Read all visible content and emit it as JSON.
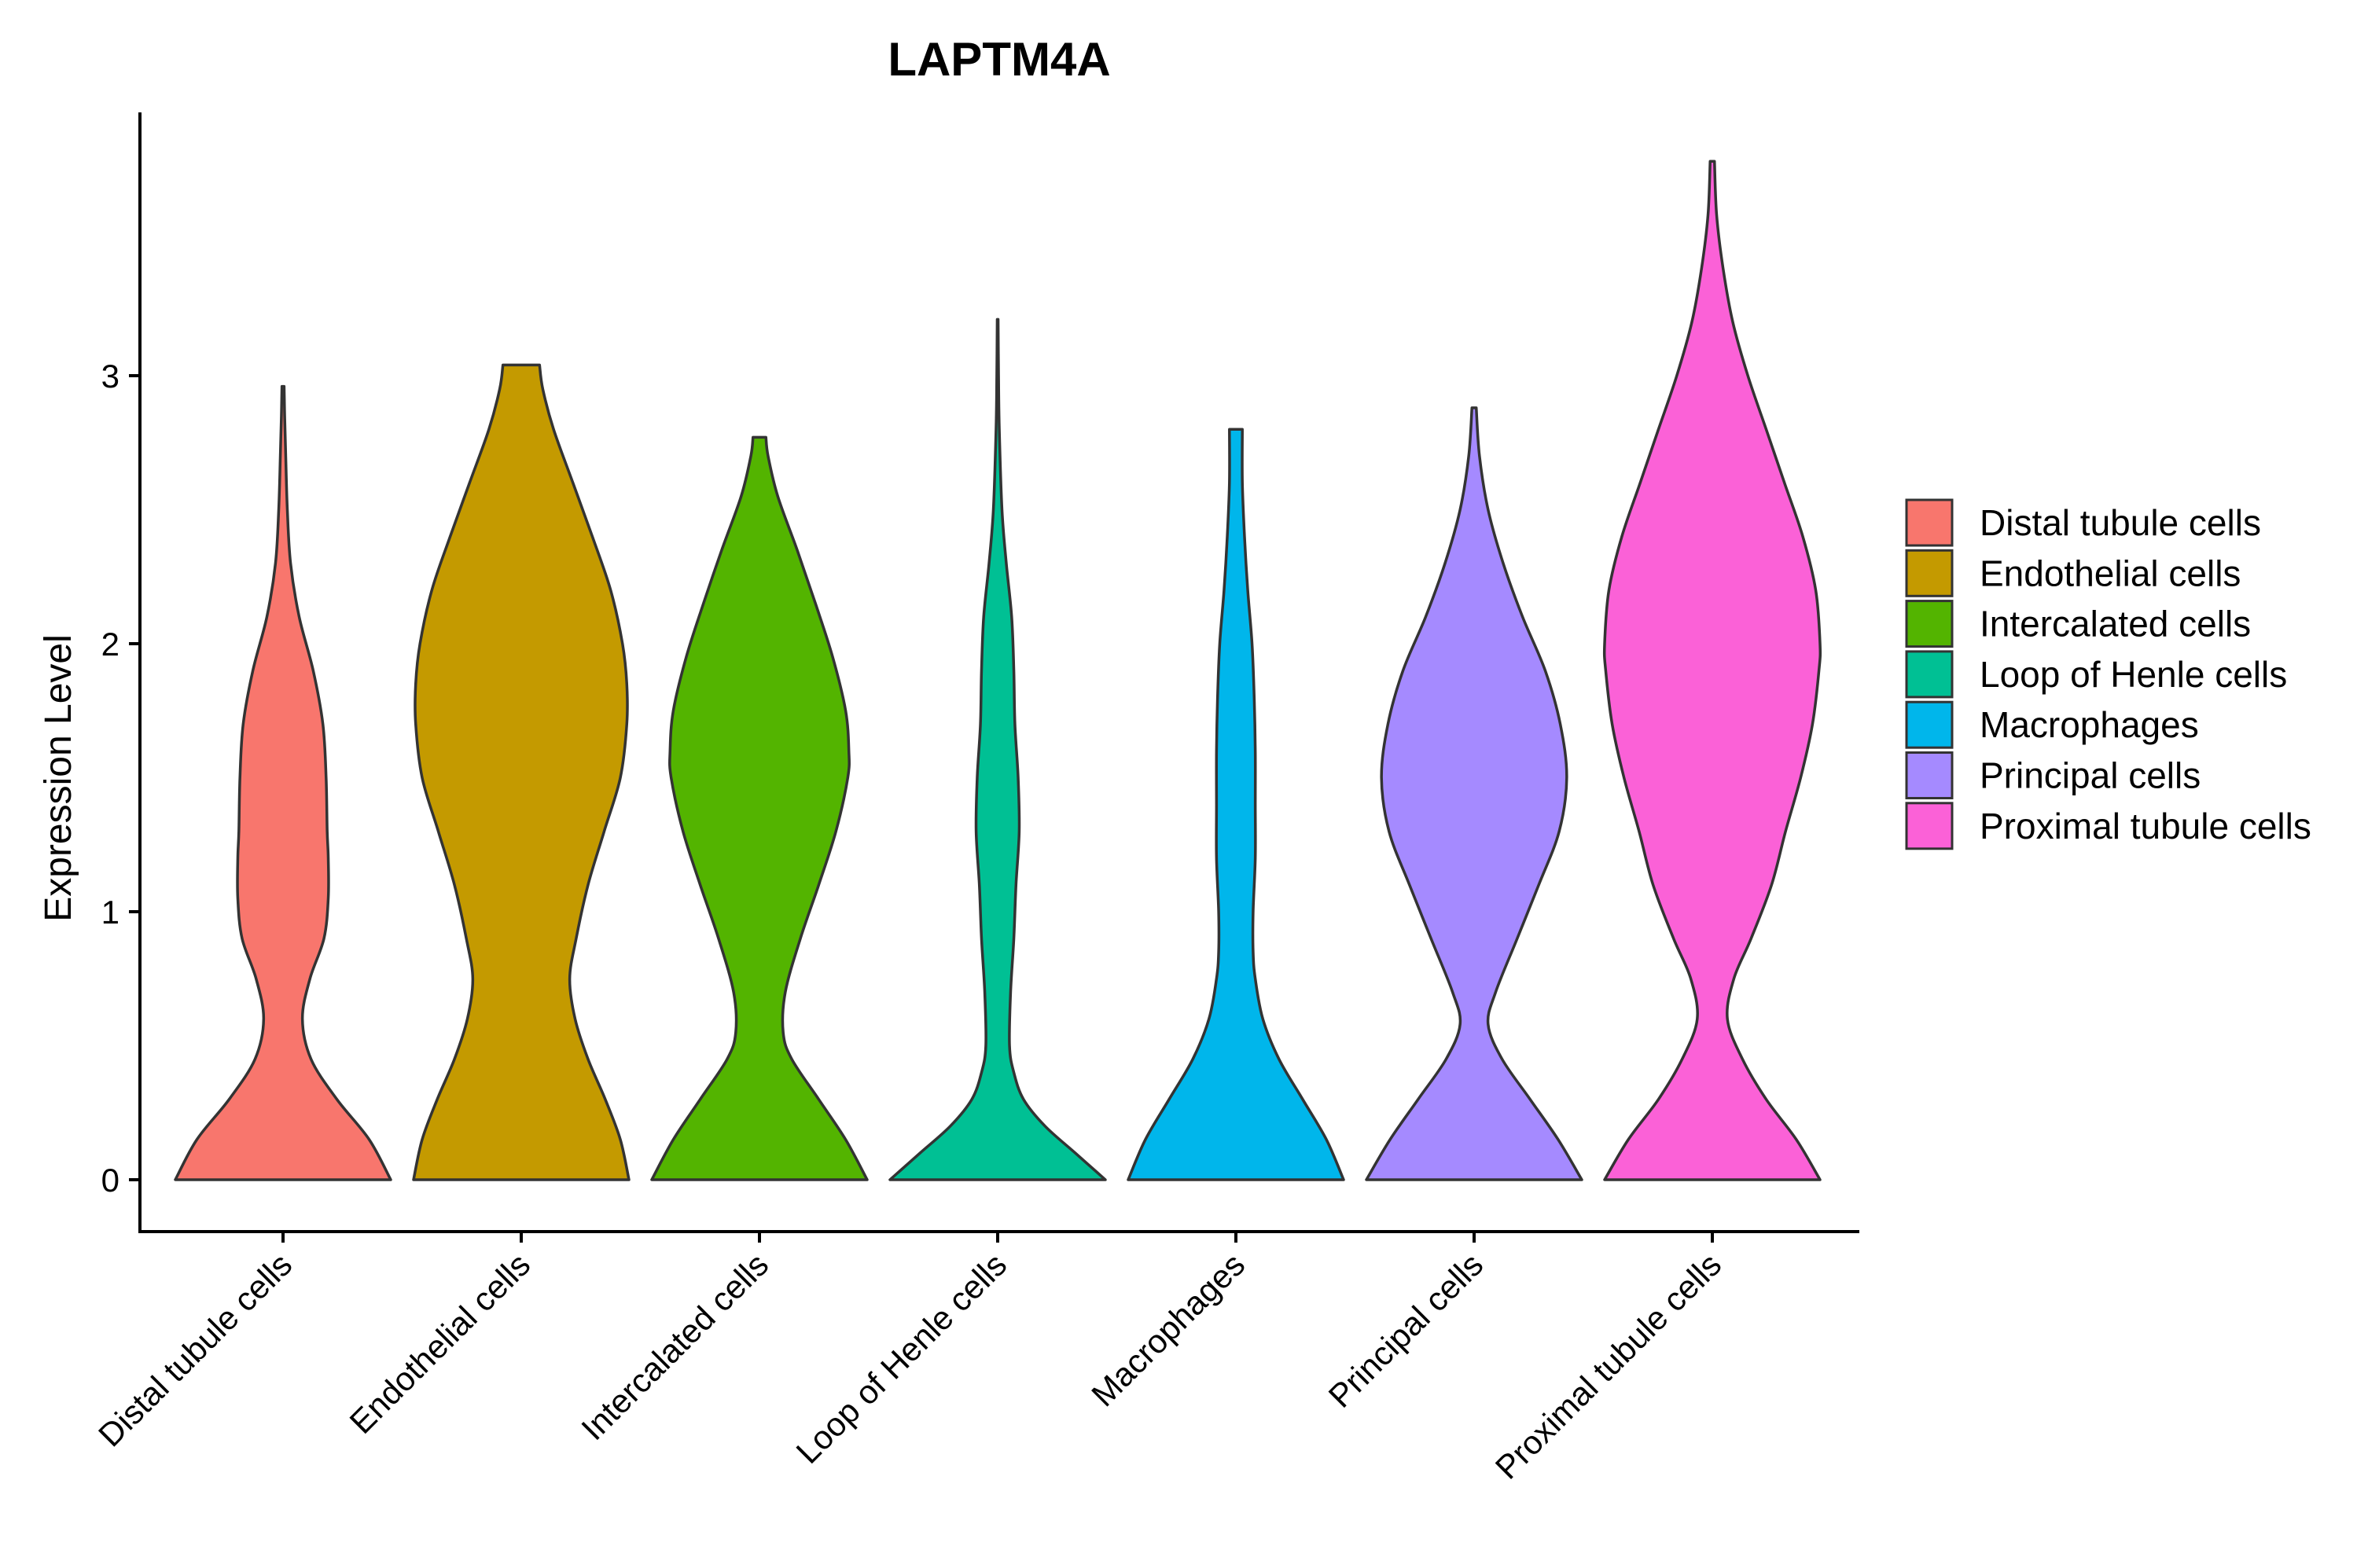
{
  "chart_data": {
    "type": "violin",
    "title": "LAPTM4A",
    "xlabel": "",
    "ylabel": "Expression Level",
    "ylim": [
      -0.19,
      4.0
    ],
    "yticks": [
      0,
      1,
      2,
      3
    ],
    "grid": false,
    "legend_position": "right",
    "categories": [
      "Distal tubule cells",
      "Endothelial cells",
      "Intercalated cells",
      "Loop of Henle cells",
      "Macrophages",
      "Principal cells",
      "Proximal tubule cells"
    ],
    "colors": [
      "#F8766D",
      "#C49A00",
      "#53B400",
      "#00C094",
      "#00B6EB",
      "#A58AFF",
      "#FB61D7"
    ],
    "series": [
      {
        "name": "Distal tubule cells",
        "max": 2.96,
        "density": [
          [
            0,
            1.0
          ],
          [
            0.15,
            0.8
          ],
          [
            0.3,
            0.5
          ],
          [
            0.45,
            0.26
          ],
          [
            0.6,
            0.18
          ],
          [
            0.75,
            0.25
          ],
          [
            0.9,
            0.38
          ],
          [
            1.05,
            0.42
          ],
          [
            1.2,
            0.42
          ],
          [
            1.3,
            0.41
          ],
          [
            1.5,
            0.4
          ],
          [
            1.7,
            0.37
          ],
          [
            1.9,
            0.28
          ],
          [
            2.1,
            0.15
          ],
          [
            2.3,
            0.07
          ],
          [
            2.5,
            0.04
          ],
          [
            2.7,
            0.025
          ],
          [
            2.85,
            0.015
          ],
          [
            2.96,
            0.01
          ]
        ]
      },
      {
        "name": "Endothelial cells",
        "max": 3.04,
        "density": [
          [
            0,
            1.0
          ],
          [
            0.15,
            0.92
          ],
          [
            0.3,
            0.78
          ],
          [
            0.45,
            0.62
          ],
          [
            0.6,
            0.5
          ],
          [
            0.75,
            0.45
          ],
          [
            0.9,
            0.51
          ],
          [
            1.1,
            0.62
          ],
          [
            1.3,
            0.77
          ],
          [
            1.5,
            0.92
          ],
          [
            1.7,
            0.98
          ],
          [
            1.85,
            0.98
          ],
          [
            2.0,
            0.94
          ],
          [
            2.2,
            0.83
          ],
          [
            2.4,
            0.66
          ],
          [
            2.6,
            0.48
          ],
          [
            2.8,
            0.3
          ],
          [
            2.95,
            0.2
          ],
          [
            3.04,
            0.17
          ]
        ]
      },
      {
        "name": "Intercalated cells",
        "max": 2.77,
        "density": [
          [
            0,
            1.0
          ],
          [
            0.15,
            0.8
          ],
          [
            0.3,
            0.55
          ],
          [
            0.45,
            0.3
          ],
          [
            0.55,
            0.22
          ],
          [
            0.7,
            0.24
          ],
          [
            0.9,
            0.38
          ],
          [
            1.1,
            0.55
          ],
          [
            1.3,
            0.71
          ],
          [
            1.5,
            0.82
          ],
          [
            1.6,
            0.83
          ],
          [
            1.75,
            0.8
          ],
          [
            1.95,
            0.68
          ],
          [
            2.15,
            0.52
          ],
          [
            2.35,
            0.35
          ],
          [
            2.55,
            0.17
          ],
          [
            2.7,
            0.08
          ],
          [
            2.77,
            0.06
          ]
        ]
      },
      {
        "name": "Loop of Henle cells",
        "max": 3.21,
        "density": [
          [
            0,
            1.0
          ],
          [
            0.1,
            0.72
          ],
          [
            0.2,
            0.44
          ],
          [
            0.3,
            0.24
          ],
          [
            0.4,
            0.15
          ],
          [
            0.5,
            0.11
          ],
          [
            0.7,
            0.12
          ],
          [
            0.9,
            0.15
          ],
          [
            1.1,
            0.17
          ],
          [
            1.3,
            0.2
          ],
          [
            1.5,
            0.19
          ],
          [
            1.7,
            0.16
          ],
          [
            1.9,
            0.15
          ],
          [
            2.1,
            0.13
          ],
          [
            2.3,
            0.08
          ],
          [
            2.5,
            0.04
          ],
          [
            2.8,
            0.015
          ],
          [
            3.0,
            0.008
          ],
          [
            3.21,
            0.004
          ]
        ]
      },
      {
        "name": "Macrophages",
        "max": 2.8,
        "density": [
          [
            0,
            1.0
          ],
          [
            0.15,
            0.84
          ],
          [
            0.3,
            0.62
          ],
          [
            0.45,
            0.4
          ],
          [
            0.6,
            0.25
          ],
          [
            0.75,
            0.18
          ],
          [
            0.85,
            0.16
          ],
          [
            1.0,
            0.16
          ],
          [
            1.2,
            0.18
          ],
          [
            1.4,
            0.18
          ],
          [
            1.6,
            0.18
          ],
          [
            1.8,
            0.17
          ],
          [
            2.0,
            0.15
          ],
          [
            2.2,
            0.11
          ],
          [
            2.4,
            0.08
          ],
          [
            2.6,
            0.06
          ],
          [
            2.8,
            0.06
          ]
        ]
      },
      {
        "name": "Principal cells",
        "max": 2.88,
        "density": [
          [
            0,
            1.0
          ],
          [
            0.15,
            0.78
          ],
          [
            0.3,
            0.52
          ],
          [
            0.45,
            0.26
          ],
          [
            0.58,
            0.13
          ],
          [
            0.7,
            0.2
          ],
          [
            0.9,
            0.4
          ],
          [
            1.1,
            0.6
          ],
          [
            1.3,
            0.79
          ],
          [
            1.5,
            0.86
          ],
          [
            1.7,
            0.8
          ],
          [
            1.9,
            0.66
          ],
          [
            2.1,
            0.45
          ],
          [
            2.3,
            0.27
          ],
          [
            2.5,
            0.13
          ],
          [
            2.7,
            0.05
          ],
          [
            2.88,
            0.02
          ]
        ]
      },
      {
        "name": "Proximal tubule cells",
        "max": 3.8,
        "density": [
          [
            0,
            1.0
          ],
          [
            0.15,
            0.78
          ],
          [
            0.3,
            0.5
          ],
          [
            0.45,
            0.28
          ],
          [
            0.6,
            0.14
          ],
          [
            0.75,
            0.2
          ],
          [
            0.9,
            0.36
          ],
          [
            1.1,
            0.55
          ],
          [
            1.3,
            0.68
          ],
          [
            1.5,
            0.82
          ],
          [
            1.7,
            0.93
          ],
          [
            1.9,
            0.99
          ],
          [
            2.0,
            1.0
          ],
          [
            2.2,
            0.96
          ],
          [
            2.4,
            0.84
          ],
          [
            2.6,
            0.67
          ],
          [
            2.8,
            0.5
          ],
          [
            3.0,
            0.33
          ],
          [
            3.2,
            0.19
          ],
          [
            3.4,
            0.1
          ],
          [
            3.6,
            0.04
          ],
          [
            3.8,
            0.02
          ]
        ]
      }
    ]
  }
}
